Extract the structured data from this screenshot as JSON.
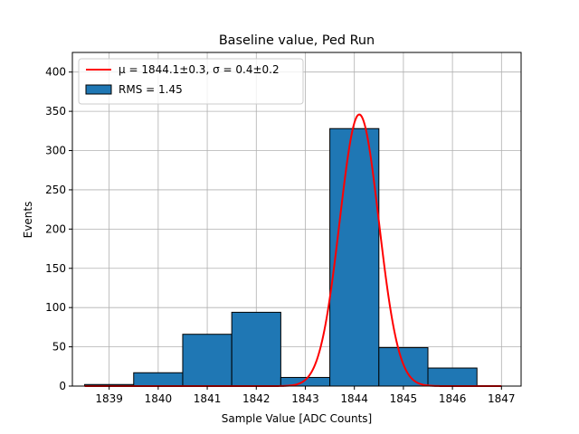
{
  "chart_data": {
    "type": "bar",
    "title": "Baseline value, Ped Run",
    "xlabel": "Sample Value [ADC Counts]",
    "ylabel": "Events",
    "xlim": [
      1838.25,
      1847.4
    ],
    "ylim": [
      0,
      425
    ],
    "xticks": [
      1839,
      1840,
      1841,
      1842,
      1843,
      1844,
      1845,
      1846,
      1847
    ],
    "yticks": [
      0,
      50,
      100,
      150,
      200,
      250,
      300,
      350,
      400
    ],
    "grid": true,
    "legend_position": "top-left",
    "histogram": {
      "name": "RMS = 1.45",
      "color": "#1f77b4",
      "bin_edges": [
        1838.5,
        1839.5,
        1840.5,
        1841.5,
        1842.5,
        1843.5,
        1844.5,
        1845.5,
        1846.5
      ],
      "counts": [
        2,
        17,
        66,
        94,
        11,
        328,
        49,
        23
      ]
    },
    "fit": {
      "name": "μ = 1844.1±0.3, σ = 0.4±0.2",
      "type": "gaussian",
      "color": "#ff0000",
      "amplitude": 346,
      "mean": 1844.1,
      "sigma": 0.4,
      "x_range": [
        1838.5,
        1847.0
      ]
    }
  }
}
